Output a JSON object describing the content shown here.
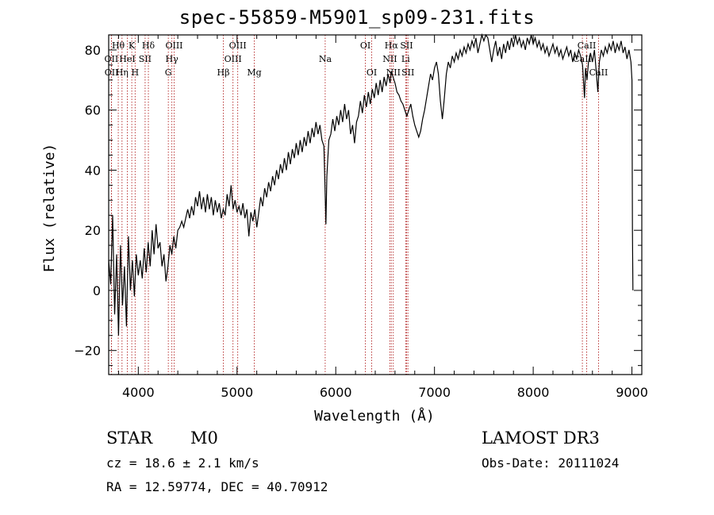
{
  "title": "spec-55859-M5901_sp09-231.fits",
  "footer": {
    "class_label": "STAR",
    "subclass_label": "M0",
    "survey_label": "LAMOST DR3",
    "redshift_line": "cz = 18.6 ± 2.1 km/s",
    "obs_date_line": "Obs-Date: 20111024",
    "coords_line": "RA =  12.59774, DEC =  40.70912"
  },
  "chart_data": {
    "type": "line",
    "title": "spec-55859-M5901_sp09-231.fits",
    "xlabel": "Wavelength (Å)",
    "ylabel": "Flux (relative)",
    "xlim": [
      3700,
      9100
    ],
    "ylim": [
      -28,
      85
    ],
    "xticks": [
      4000,
      5000,
      6000,
      7000,
      8000,
      9000
    ],
    "yticks": [
      -20,
      0,
      20,
      40,
      60,
      80
    ],
    "xtick_labels": [
      "4000",
      "5000",
      "6000",
      "7000",
      "8000",
      "9000"
    ],
    "ytick_labels": [
      "−20",
      "0",
      "20",
      "40",
      "60",
      "80"
    ],
    "series": [
      {
        "name": "flux",
        "points": [
          [
            3700,
            10
          ],
          [
            3720,
            2
          ],
          [
            3740,
            25
          ],
          [
            3760,
            -8
          ],
          [
            3780,
            12
          ],
          [
            3800,
            -15
          ],
          [
            3820,
            15
          ],
          [
            3840,
            -5
          ],
          [
            3860,
            8
          ],
          [
            3880,
            -12
          ],
          [
            3900,
            18
          ],
          [
            3920,
            0
          ],
          [
            3940,
            10
          ],
          [
            3960,
            -2
          ],
          [
            3980,
            12
          ],
          [
            4000,
            5
          ],
          [
            4020,
            10
          ],
          [
            4040,
            4
          ],
          [
            4060,
            14
          ],
          [
            4080,
            6
          ],
          [
            4100,
            16
          ],
          [
            4120,
            8
          ],
          [
            4140,
            20
          ],
          [
            4160,
            12
          ],
          [
            4180,
            22
          ],
          [
            4200,
            14
          ],
          [
            4220,
            16
          ],
          [
            4240,
            8
          ],
          [
            4260,
            12
          ],
          [
            4280,
            3
          ],
          [
            4300,
            8
          ],
          [
            4320,
            15
          ],
          [
            4340,
            12
          ],
          [
            4360,
            18
          ],
          [
            4380,
            14
          ],
          [
            4400,
            20
          ],
          [
            4420,
            21
          ],
          [
            4440,
            23
          ],
          [
            4460,
            21
          ],
          [
            4480,
            24
          ],
          [
            4500,
            27
          ],
          [
            4520,
            24
          ],
          [
            4540,
            28
          ],
          [
            4560,
            25
          ],
          [
            4580,
            31
          ],
          [
            4600,
            28
          ],
          [
            4620,
            33
          ],
          [
            4640,
            27
          ],
          [
            4660,
            31
          ],
          [
            4680,
            26
          ],
          [
            4700,
            32
          ],
          [
            4720,
            27
          ],
          [
            4740,
            31
          ],
          [
            4760,
            25
          ],
          [
            4780,
            30
          ],
          [
            4800,
            26
          ],
          [
            4820,
            29
          ],
          [
            4840,
            24
          ],
          [
            4860,
            27
          ],
          [
            4880,
            25
          ],
          [
            4900,
            32
          ],
          [
            4920,
            28
          ],
          [
            4940,
            35
          ],
          [
            4960,
            27
          ],
          [
            4980,
            30
          ],
          [
            5000,
            26
          ],
          [
            5020,
            28
          ],
          [
            5040,
            25
          ],
          [
            5060,
            29
          ],
          [
            5080,
            24
          ],
          [
            5100,
            27
          ],
          [
            5120,
            18
          ],
          [
            5140,
            26
          ],
          [
            5160,
            23
          ],
          [
            5180,
            27
          ],
          [
            5200,
            21
          ],
          [
            5220,
            26
          ],
          [
            5240,
            31
          ],
          [
            5260,
            28
          ],
          [
            5280,
            34
          ],
          [
            5300,
            31
          ],
          [
            5320,
            36
          ],
          [
            5340,
            33
          ],
          [
            5360,
            38
          ],
          [
            5380,
            35
          ],
          [
            5400,
            40
          ],
          [
            5420,
            37
          ],
          [
            5440,
            42
          ],
          [
            5460,
            39
          ],
          [
            5480,
            44
          ],
          [
            5500,
            40
          ],
          [
            5520,
            46
          ],
          [
            5540,
            42
          ],
          [
            5560,
            47
          ],
          [
            5580,
            44
          ],
          [
            5600,
            49
          ],
          [
            5620,
            45
          ],
          [
            5640,
            50
          ],
          [
            5660,
            46
          ],
          [
            5680,
            51
          ],
          [
            5700,
            48
          ],
          [
            5720,
            53
          ],
          [
            5740,
            49
          ],
          [
            5760,
            54
          ],
          [
            5780,
            51
          ],
          [
            5800,
            56
          ],
          [
            5820,
            52
          ],
          [
            5840,
            55
          ],
          [
            5860,
            50
          ],
          [
            5880,
            48
          ],
          [
            5890,
            36
          ],
          [
            5900,
            22
          ],
          [
            5910,
            38
          ],
          [
            5930,
            50
          ],
          [
            5950,
            52
          ],
          [
            5970,
            57
          ],
          [
            5990,
            53
          ],
          [
            6010,
            58
          ],
          [
            6030,
            55
          ],
          [
            6050,
            60
          ],
          [
            6070,
            56
          ],
          [
            6090,
            62
          ],
          [
            6110,
            57
          ],
          [
            6130,
            60
          ],
          [
            6150,
            52
          ],
          [
            6170,
            55
          ],
          [
            6190,
            49
          ],
          [
            6210,
            56
          ],
          [
            6230,
            58
          ],
          [
            6250,
            63
          ],
          [
            6270,
            59
          ],
          [
            6290,
            65
          ],
          [
            6310,
            61
          ],
          [
            6330,
            66
          ],
          [
            6350,
            62
          ],
          [
            6370,
            67
          ],
          [
            6390,
            64
          ],
          [
            6410,
            69
          ],
          [
            6430,
            65
          ],
          [
            6450,
            70
          ],
          [
            6470,
            66
          ],
          [
            6490,
            71
          ],
          [
            6510,
            68
          ],
          [
            6530,
            72
          ],
          [
            6550,
            69
          ],
          [
            6563,
            73
          ],
          [
            6580,
            71
          ],
          [
            6600,
            69
          ],
          [
            6620,
            66
          ],
          [
            6640,
            65
          ],
          [
            6660,
            63
          ],
          [
            6680,
            62
          ],
          [
            6700,
            60
          ],
          [
            6720,
            58
          ],
          [
            6740,
            60
          ],
          [
            6760,
            62
          ],
          [
            6780,
            58
          ],
          [
            6800,
            55
          ],
          [
            6820,
            53
          ],
          [
            6840,
            51
          ],
          [
            6860,
            53
          ],
          [
            6880,
            57
          ],
          [
            6900,
            60
          ],
          [
            6920,
            64
          ],
          [
            6940,
            68
          ],
          [
            6960,
            72
          ],
          [
            6980,
            70
          ],
          [
            7000,
            74
          ],
          [
            7020,
            76
          ],
          [
            7040,
            72
          ],
          [
            7060,
            63
          ],
          [
            7080,
            57
          ],
          [
            7100,
            64
          ],
          [
            7120,
            72
          ],
          [
            7140,
            76
          ],
          [
            7160,
            74
          ],
          [
            7180,
            78
          ],
          [
            7200,
            76
          ],
          [
            7220,
            79
          ],
          [
            7240,
            77
          ],
          [
            7260,
            80
          ],
          [
            7280,
            78
          ],
          [
            7300,
            81
          ],
          [
            7320,
            79
          ],
          [
            7340,
            82
          ],
          [
            7360,
            80
          ],
          [
            7380,
            83
          ],
          [
            7400,
            81
          ],
          [
            7420,
            84
          ],
          [
            7440,
            79
          ],
          [
            7460,
            82
          ],
          [
            7480,
            85
          ],
          [
            7500,
            83
          ],
          [
            7520,
            86
          ],
          [
            7540,
            84
          ],
          [
            7560,
            80
          ],
          [
            7580,
            76
          ],
          [
            7600,
            80
          ],
          [
            7620,
            83
          ],
          [
            7640,
            78
          ],
          [
            7660,
            81
          ],
          [
            7680,
            77
          ],
          [
            7700,
            82
          ],
          [
            7720,
            79
          ],
          [
            7740,
            83
          ],
          [
            7760,
            80
          ],
          [
            7780,
            84
          ],
          [
            7800,
            81
          ],
          [
            7820,
            85
          ],
          [
            7840,
            82
          ],
          [
            7860,
            84
          ],
          [
            7880,
            81
          ],
          [
            7900,
            83
          ],
          [
            7920,
            80
          ],
          [
            7940,
            84
          ],
          [
            7960,
            82
          ],
          [
            7980,
            85
          ],
          [
            8000,
            82
          ],
          [
            8020,
            84
          ],
          [
            8040,
            81
          ],
          [
            8060,
            83
          ],
          [
            8080,
            80
          ],
          [
            8100,
            82
          ],
          [
            8120,
            79
          ],
          [
            8140,
            81
          ],
          [
            8160,
            78
          ],
          [
            8180,
            80
          ],
          [
            8200,
            82
          ],
          [
            8220,
            79
          ],
          [
            8240,
            81
          ],
          [
            8260,
            78
          ],
          [
            8280,
            80
          ],
          [
            8300,
            77
          ],
          [
            8320,
            79
          ],
          [
            8340,
            81
          ],
          [
            8360,
            78
          ],
          [
            8380,
            80
          ],
          [
            8400,
            76
          ],
          [
            8420,
            79
          ],
          [
            8440,
            77
          ],
          [
            8460,
            80
          ],
          [
            8480,
            78
          ],
          [
            8500,
            75
          ],
          [
            8520,
            64
          ],
          [
            8530,
            74
          ],
          [
            8545,
            70
          ],
          [
            8560,
            76
          ],
          [
            8580,
            79
          ],
          [
            8600,
            76
          ],
          [
            8620,
            80
          ],
          [
            8640,
            72
          ],
          [
            8655,
            66
          ],
          [
            8670,
            76
          ],
          [
            8690,
            80
          ],
          [
            8710,
            78
          ],
          [
            8730,
            81
          ],
          [
            8750,
            79
          ],
          [
            8770,
            82
          ],
          [
            8790,
            80
          ],
          [
            8810,
            83
          ],
          [
            8830,
            79
          ],
          [
            8850,
            82
          ],
          [
            8870,
            80
          ],
          [
            8890,
            83
          ],
          [
            8910,
            79
          ],
          [
            8930,
            81
          ],
          [
            8950,
            77
          ],
          [
            8970,
            80
          ],
          [
            8990,
            76
          ],
          [
            9000,
            70
          ],
          [
            9005,
            20
          ],
          [
            9010,
            0
          ]
        ]
      }
    ],
    "line_marks": [
      {
        "label": "Hθ",
        "x": 3797,
        "row": 1
      },
      {
        "label": "OII",
        "x": 3727,
        "row": 2
      },
      {
        "label": "OII",
        "x": 3729,
        "row": 3
      },
      {
        "label": "Hη",
        "x": 3835,
        "row": 3
      },
      {
        "label": "HeI",
        "x": 3889,
        "row": 2
      },
      {
        "label": "K",
        "x": 3934,
        "row": 1
      },
      {
        "label": "H",
        "x": 3968,
        "row": 3
      },
      {
        "label": "SII",
        "x": 4069,
        "row": 2
      },
      {
        "label": "Hδ",
        "x": 4102,
        "row": 1
      },
      {
        "label": "OIII",
        "x": 4363,
        "row": 1
      },
      {
        "label": "Hγ",
        "x": 4340,
        "row": 2
      },
      {
        "label": "G",
        "x": 4304,
        "row": 3
      },
      {
        "label": "Hβ",
        "x": 4861,
        "row": 3
      },
      {
        "label": "OIII",
        "x": 5007,
        "row": 1
      },
      {
        "label": "OIII",
        "x": 4959,
        "row": 2
      },
      {
        "label": "Mg",
        "x": 5175,
        "row": 3
      },
      {
        "label": "Na",
        "x": 5893,
        "row": 2
      },
      {
        "label": "OI",
        "x": 6300,
        "row": 1
      },
      {
        "label": "OI",
        "x": 6364,
        "row": 3
      },
      {
        "label": "Hα",
        "x": 6563,
        "row": 1
      },
      {
        "label": "SII",
        "x": 6717,
        "row": 1
      },
      {
        "label": "NII",
        "x": 6548,
        "row": 2
      },
      {
        "label": "Li",
        "x": 6708,
        "row": 2
      },
      {
        "label": "NII",
        "x": 6583,
        "row": 3
      },
      {
        "label": "SII",
        "x": 6731,
        "row": 3
      },
      {
        "label": "CaII",
        "x": 8542,
        "row": 1
      },
      {
        "label": "CaII",
        "x": 8498,
        "row": 2
      },
      {
        "label": "CaII",
        "x": 8662,
        "row": 3
      }
    ],
    "colors": {
      "line": "#000000",
      "marker": "#b22222",
      "axis": "#000000"
    }
  }
}
